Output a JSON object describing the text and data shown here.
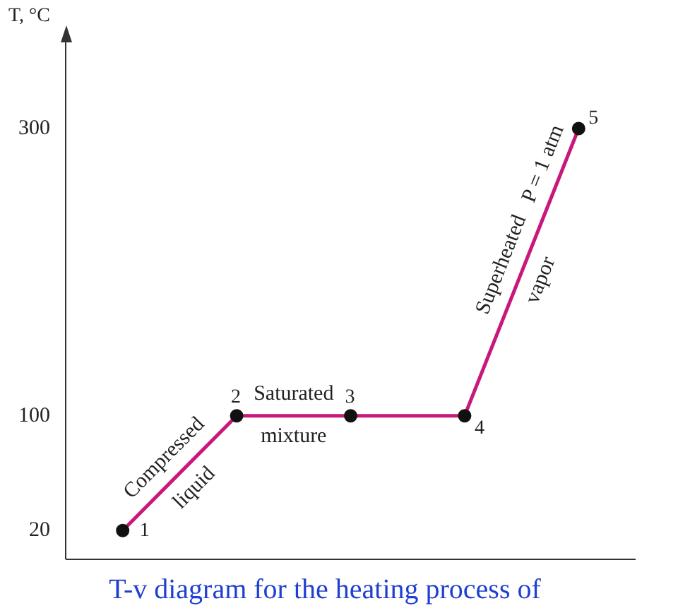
{
  "chart_data": {
    "type": "line",
    "title": "T-v diagram for the heating process of",
    "ylabel": "T, °C",
    "categories": [
      null,
      null,
      null,
      null,
      null
    ],
    "series": [
      {
        "color": "#c8187c",
        "values": [
          20,
          100,
          100,
          100,
          300
        ]
      }
    ],
    "ylim": [
      0,
      360
    ],
    "yticks": [
      20,
      100,
      300
    ],
    "tick_labels": "y",
    "grid": false,
    "legend": false,
    "marker": "circle",
    "line_style": "solid",
    "annotations": [
      "Compressed liquid",
      "Saturated mixture",
      "Superheated vapor",
      "P = 1 atm",
      "1",
      "2",
      "3",
      "4",
      "5"
    ]
  }
}
